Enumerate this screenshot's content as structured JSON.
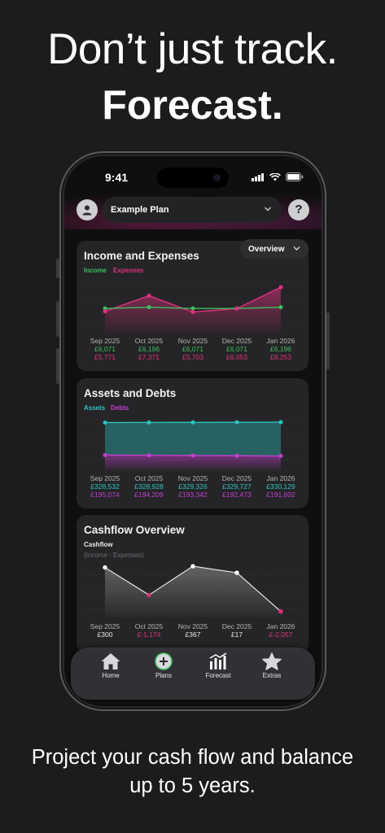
{
  "marketing": {
    "headline_1": "Don’t just track.",
    "headline_2": "Forecast.",
    "footer_1": "Project your cash flow and balance",
    "footer_2": "up to 5 years."
  },
  "status_bar": {
    "time": "9:41"
  },
  "header": {
    "plan_name": "Example Plan",
    "help_label": "?"
  },
  "overview_menu": {
    "label": "Overview"
  },
  "months": [
    "Sep 2025",
    "Oct 2025",
    "Nov 2025",
    "Dec 2025",
    "Jan 2026"
  ],
  "income_card": {
    "title": "Income and Expenses",
    "legend_income": "Income",
    "legend_expenses": "Expenses",
    "income": [
      "£6,071",
      "£6,196",
      "£6,071",
      "£6,071",
      "£6,196"
    ],
    "expenses": [
      "£5,771",
      "£7,371",
      "£5,703",
      "£6,053",
      "£8,253"
    ]
  },
  "assets_card": {
    "title": "Assets and Debts",
    "legend_assets": "Assets",
    "legend_debts": "Debts",
    "assets": [
      "£328,532",
      "£328,928",
      "£329,326",
      "£329,727",
      "£330,129"
    ],
    "debts": [
      "£195,074",
      "£194,209",
      "£193,342",
      "£192,473",
      "£191,602"
    ]
  },
  "cashflow_card": {
    "title": "Cashflow Overview",
    "series_label": "Cashflow",
    "series_note": "(Income - Expenses)",
    "values": [
      "£300",
      "£-1,174",
      "£367",
      "£17",
      "£-2,057"
    ]
  },
  "tabs": [
    {
      "label": "Home",
      "icon": "house-icon"
    },
    {
      "label": "Plans",
      "icon": "plus-circle-icon"
    },
    {
      "label": "Forecast",
      "icon": "bar-chart-icon"
    },
    {
      "label": "Extras",
      "icon": "star-icon"
    }
  ],
  "colors": {
    "income": "#3fbf5f",
    "expenses": "#e0307f",
    "assets": "#2fc4c0",
    "debts": "#c43fd0"
  },
  "chart_data": [
    {
      "type": "line",
      "title": "Income and Expenses",
      "x": [
        "Sep 2025",
        "Oct 2025",
        "Nov 2025",
        "Dec 2025",
        "Jan 2026"
      ],
      "series": [
        {
          "name": "Income",
          "values": [
            6071,
            6196,
            6071,
            6071,
            6196
          ]
        },
        {
          "name": "Expenses",
          "values": [
            5771,
            7371,
            5703,
            6053,
            8253
          ]
        }
      ]
    },
    {
      "type": "area",
      "title": "Assets and Debts",
      "x": [
        "Sep 2025",
        "Oct 2025",
        "Nov 2025",
        "Dec 2025",
        "Jan 2026"
      ],
      "series": [
        {
          "name": "Assets",
          "values": [
            328532,
            328928,
            329326,
            329727,
            330129
          ]
        },
        {
          "name": "Debts",
          "values": [
            195074,
            194209,
            193342,
            192473,
            191602
          ]
        }
      ]
    },
    {
      "type": "line",
      "title": "Cashflow Overview",
      "x": [
        "Sep 2025",
        "Oct 2025",
        "Nov 2025",
        "Dec 2025",
        "Jan 2026"
      ],
      "series": [
        {
          "name": "Cashflow",
          "values": [
            300,
            -1174,
            367,
            17,
            -2057
          ]
        }
      ]
    }
  ]
}
